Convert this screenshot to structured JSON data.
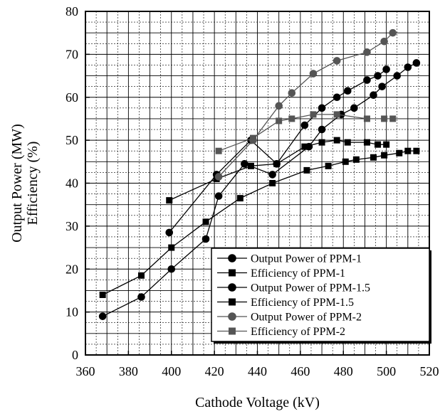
{
  "chart_data": {
    "type": "line",
    "xlabel": "Cathode Voltage (kV)",
    "ylabel": [
      "Output Power (MW)",
      "Efficiency (%)"
    ],
    "xlim": [
      360,
      520
    ],
    "ylim": [
      0,
      80
    ],
    "xticks": [
      "360",
      "380",
      "400",
      "420",
      "440",
      "460",
      "480",
      "500",
      "520"
    ],
    "yticks": [
      "0",
      "10",
      "20",
      "30",
      "40",
      "50",
      "60",
      "70",
      "80"
    ],
    "grid": true,
    "legend_position": "bottom-right",
    "series": [
      {
        "name": "Output Power of PPM-1",
        "marker": "circle",
        "color": "#000000",
        "points": [
          [
            368,
            9
          ],
          [
            386,
            13.5
          ],
          [
            400,
            20
          ],
          [
            416,
            27
          ],
          [
            422,
            37
          ],
          [
            434,
            44.5
          ],
          [
            447,
            42
          ],
          [
            464,
            48.5
          ],
          [
            470,
            52.5
          ],
          [
            479,
            56
          ],
          [
            485,
            57.5
          ],
          [
            494,
            60.5
          ],
          [
            498,
            62.5
          ],
          [
            505,
            65
          ],
          [
            510,
            67
          ],
          [
            514,
            68
          ]
        ]
      },
      {
        "name": "Efficiency of PPM-1",
        "marker": "square",
        "color": "#000000",
        "points": [
          [
            368,
            14
          ],
          [
            386,
            18.5
          ],
          [
            400,
            25
          ],
          [
            416,
            31
          ],
          [
            432,
            36.5
          ],
          [
            447,
            40
          ],
          [
            463,
            43
          ],
          [
            473,
            44
          ],
          [
            481,
            45
          ],
          [
            486,
            45.5
          ],
          [
            494,
            46
          ],
          [
            499,
            46.5
          ],
          [
            506,
            47
          ],
          [
            510,
            47.5
          ],
          [
            514,
            47.5
          ]
        ]
      },
      {
        "name": "Output Power of PPM-1.5",
        "marker": "circle",
        "color": "#000000",
        "points": [
          [
            399,
            28.5
          ],
          [
            421,
            42
          ],
          [
            437,
            50
          ],
          [
            449,
            44.5
          ],
          [
            462,
            53.5
          ],
          [
            470,
            57.5
          ],
          [
            477,
            60
          ],
          [
            482,
            61.5
          ],
          [
            491,
            64
          ],
          [
            496,
            65
          ],
          [
            500,
            66.5
          ]
        ]
      },
      {
        "name": "Efficiency of PPM-1.5",
        "marker": "square",
        "color": "#000000",
        "points": [
          [
            399,
            36
          ],
          [
            421,
            41
          ],
          [
            437,
            44
          ],
          [
            449,
            44.5
          ],
          [
            462,
            48.5
          ],
          [
            470,
            49.5
          ],
          [
            477,
            50
          ],
          [
            482,
            49.5
          ],
          [
            491,
            49.5
          ],
          [
            496,
            49
          ],
          [
            500,
            49
          ]
        ]
      },
      {
        "name": "Output Power of PPM-2",
        "marker": "circle",
        "color": "#555555",
        "points": [
          [
            422,
            41.5
          ],
          [
            438,
            50
          ],
          [
            450,
            58
          ],
          [
            456,
            61
          ],
          [
            466,
            65.5
          ],
          [
            477,
            68.5
          ],
          [
            491,
            70.5
          ],
          [
            499,
            73
          ],
          [
            503,
            75
          ]
        ]
      },
      {
        "name": "Efficiency of PPM-2",
        "marker": "square",
        "color": "#555555",
        "points": [
          [
            422,
            47.5
          ],
          [
            438,
            50.5
          ],
          [
            450,
            54.5
          ],
          [
            456,
            55
          ],
          [
            466,
            56
          ],
          [
            477,
            56
          ],
          [
            491,
            55
          ],
          [
            499,
            55
          ],
          [
            503,
            55
          ]
        ]
      }
    ]
  }
}
